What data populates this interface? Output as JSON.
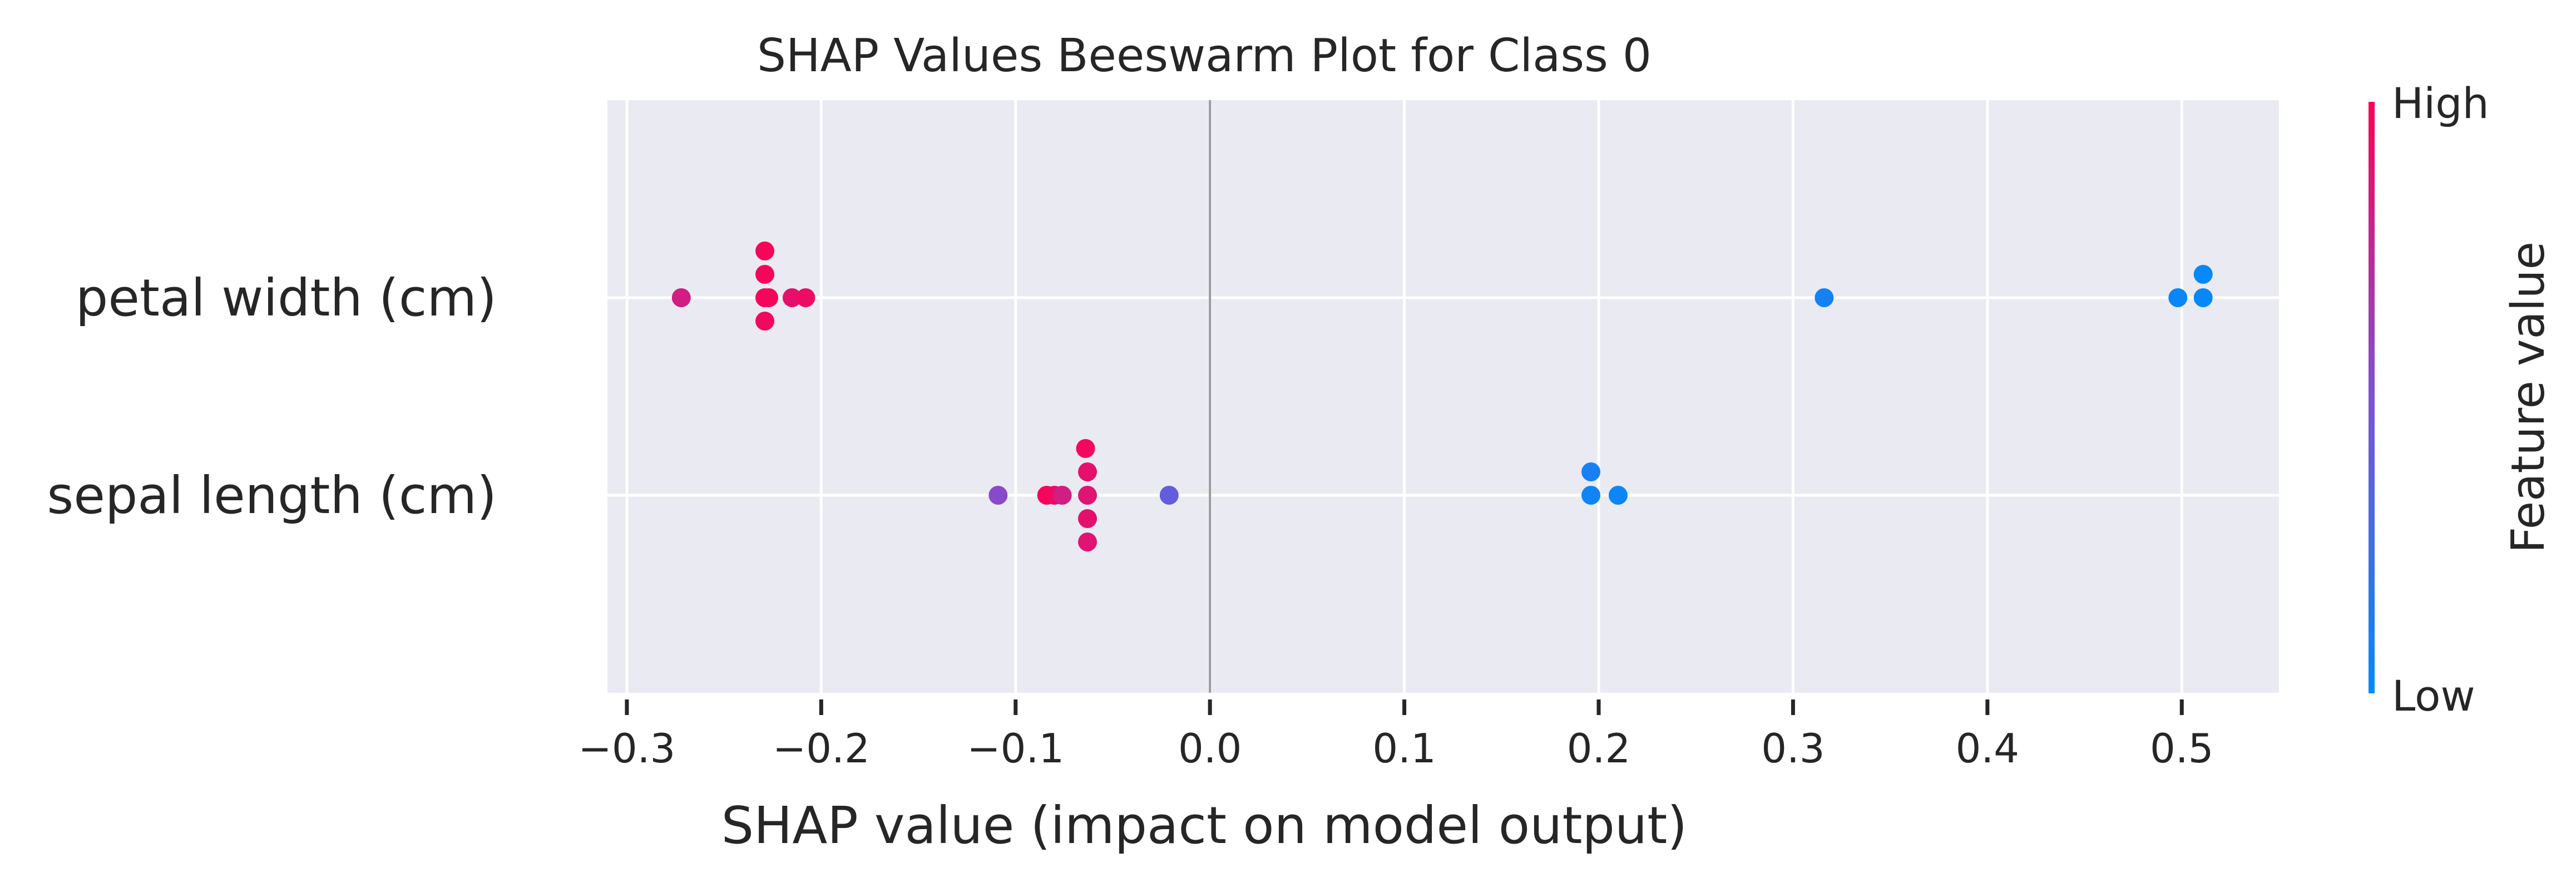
{
  "chart_data": {
    "type": "scatter",
    "title": "SHAP Values Beeswarm Plot for Class 0",
    "xlabel": "SHAP value (impact on model output)",
    "xlim": [
      -0.31,
      0.55
    ],
    "xticks": [
      -0.3,
      -0.2,
      -0.1,
      0.0,
      0.1,
      0.2,
      0.3,
      0.4,
      0.5
    ],
    "xtick_labels": [
      "−0.3",
      "−0.2",
      "−0.1",
      "0.0",
      "0.1",
      "0.2",
      "0.3",
      "0.4",
      "0.5"
    ],
    "grid": true,
    "features": [
      {
        "name": "petal width (cm)",
        "points": [
          {
            "x": -0.272,
            "offset": 0,
            "c": 0.82
          },
          {
            "x": -0.229,
            "offset": 2,
            "c": 0.97
          },
          {
            "x": -0.229,
            "offset": 1,
            "c": 0.97
          },
          {
            "x": -0.229,
            "offset": 0,
            "c": 0.97
          },
          {
            "x": -0.227,
            "offset": 0,
            "c": 0.97
          },
          {
            "x": -0.229,
            "offset": -1,
            "c": 0.95
          },
          {
            "x": -0.215,
            "offset": 0,
            "c": 0.9
          },
          {
            "x": -0.208,
            "offset": 0,
            "c": 0.93
          },
          {
            "x": 0.316,
            "offset": 0,
            "c": 0.08
          },
          {
            "x": 0.498,
            "offset": 0,
            "c": 0.04
          },
          {
            "x": 0.511,
            "offset": 1,
            "c": 0.02
          },
          {
            "x": 0.511,
            "offset": 0,
            "c": 0.03
          }
        ]
      },
      {
        "name": "sepal length (cm)",
        "points": [
          {
            "x": -0.109,
            "offset": 0,
            "c": 0.55
          },
          {
            "x": -0.084,
            "offset": 0,
            "c": 0.97
          },
          {
            "x": -0.08,
            "offset": 0,
            "c": 0.95
          },
          {
            "x": -0.076,
            "offset": 0,
            "c": 0.82
          },
          {
            "x": -0.064,
            "offset": 2,
            "c": 0.96
          },
          {
            "x": -0.063,
            "offset": 1,
            "c": 0.9
          },
          {
            "x": -0.063,
            "offset": 0,
            "c": 0.88
          },
          {
            "x": -0.063,
            "offset": -1,
            "c": 0.9
          },
          {
            "x": -0.063,
            "offset": -2,
            "c": 0.88
          },
          {
            "x": -0.021,
            "offset": 0,
            "c": 0.4
          },
          {
            "x": 0.196,
            "offset": 1,
            "c": 0.1
          },
          {
            "x": 0.196,
            "offset": 0,
            "c": 0.06
          },
          {
            "x": 0.21,
            "offset": 0,
            "c": 0.05
          }
        ]
      }
    ],
    "colorbar": {
      "label": "Feature value",
      "high_label": "High",
      "low_label": "Low",
      "high_color": "#ff0052",
      "low_color": "#008bfb"
    },
    "colors": {
      "background": "#eaeaf2",
      "grid": "#ffffff",
      "zero_line": "#999999"
    }
  }
}
